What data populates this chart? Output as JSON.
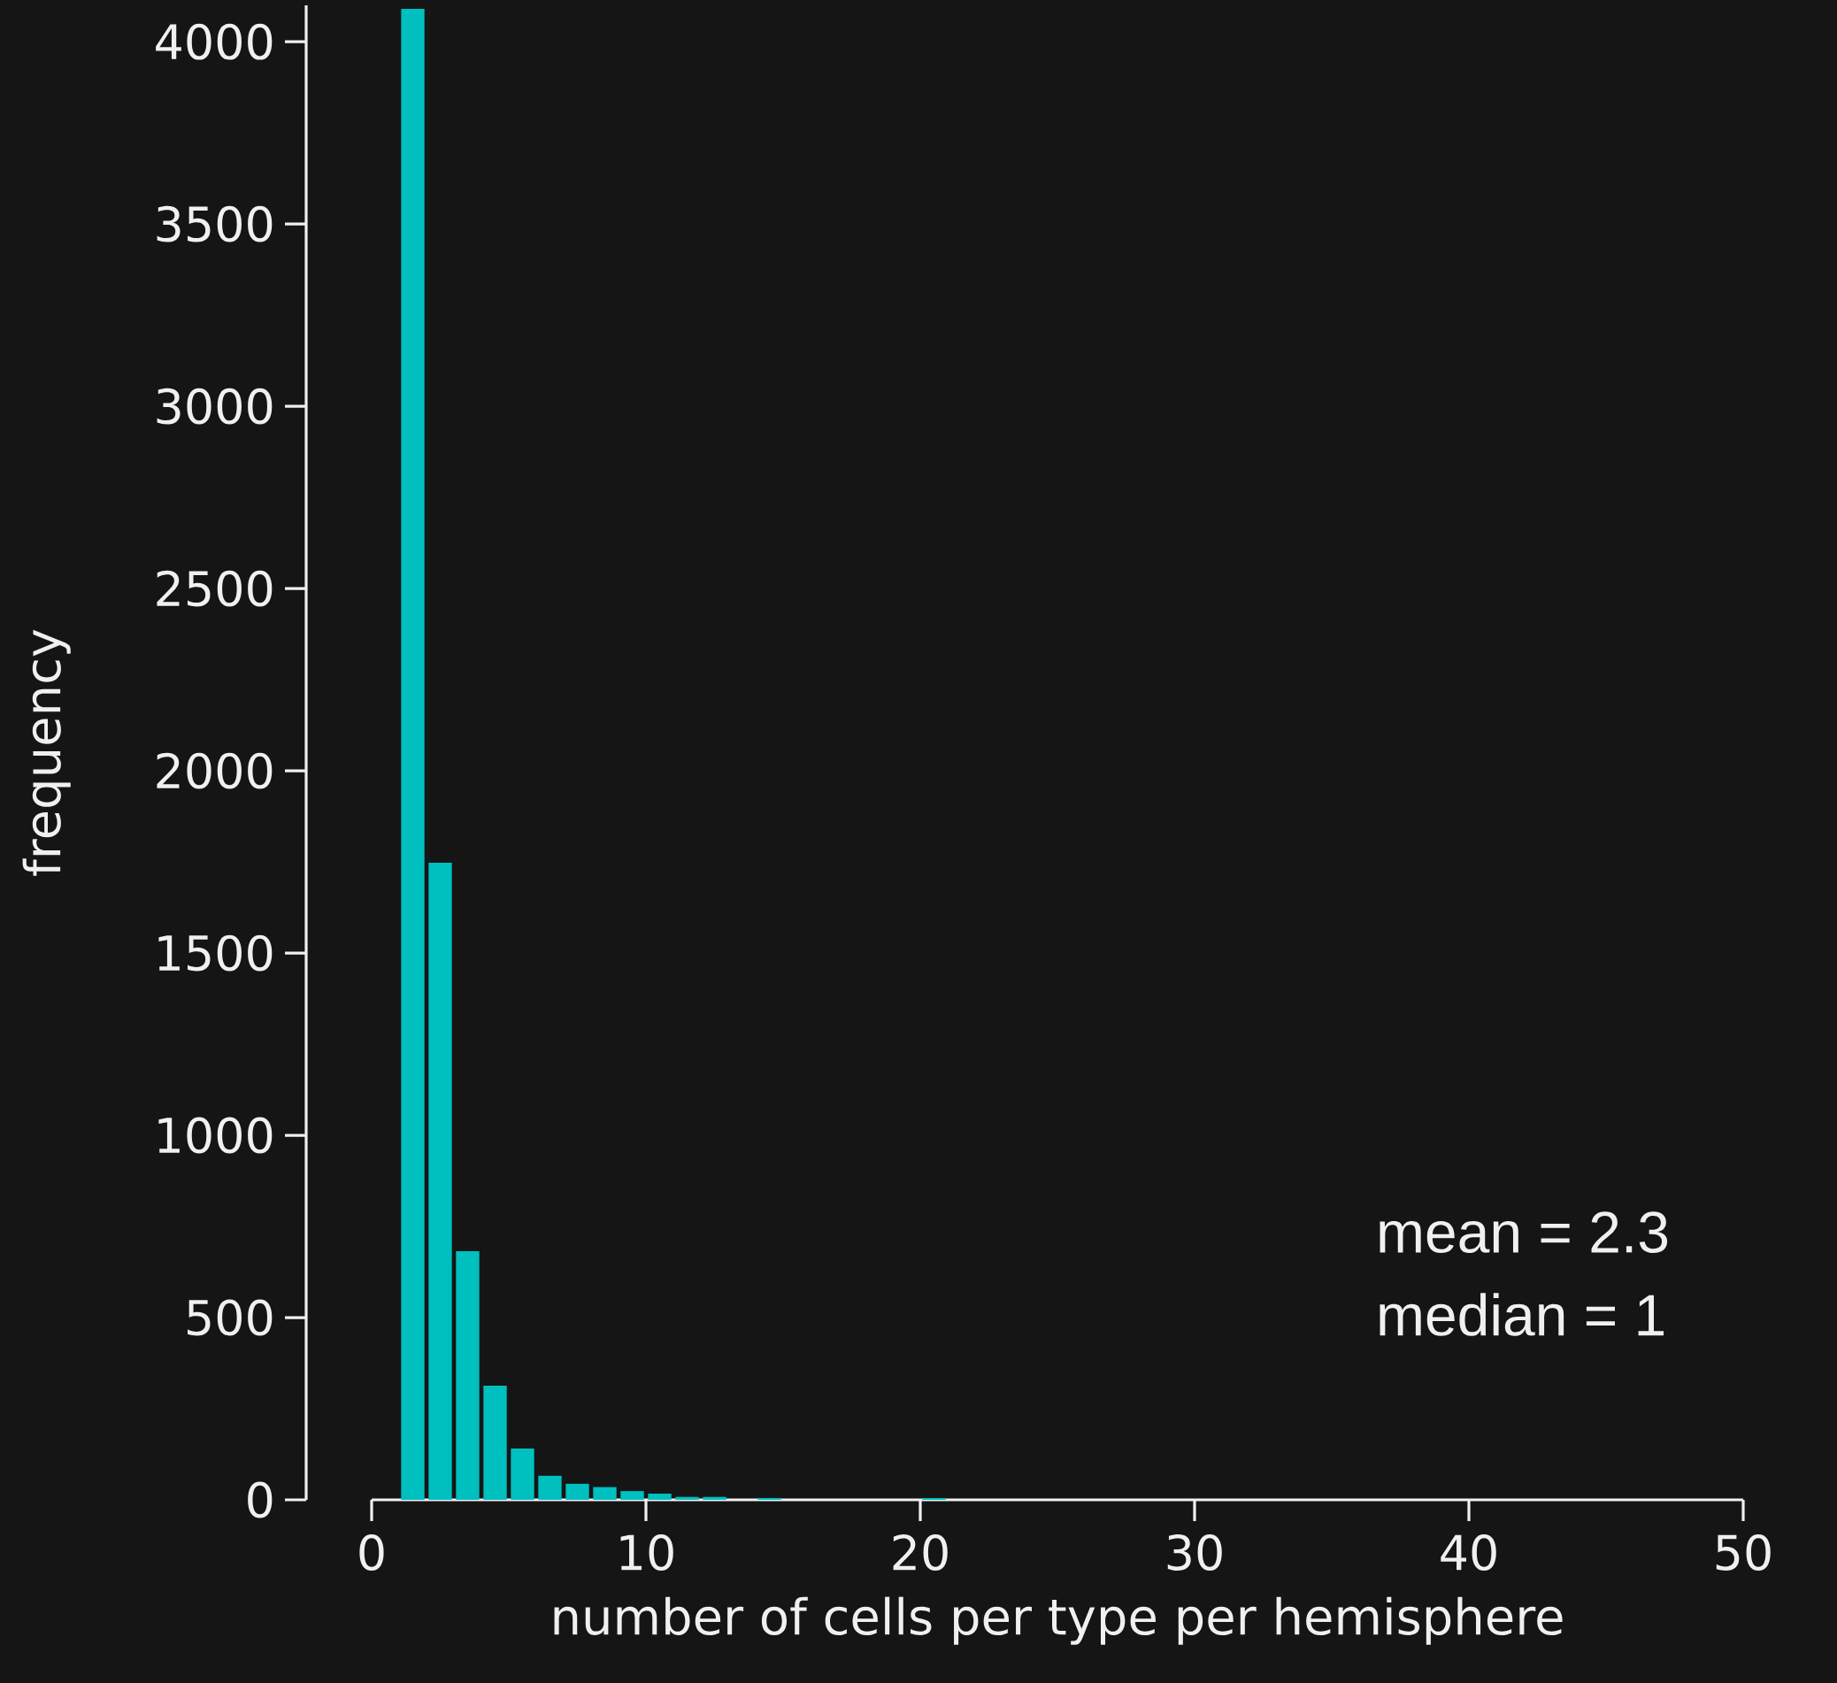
{
  "chart_data": {
    "type": "histogram",
    "xlabel": "number of cells per type per hemisphere",
    "ylabel": "frequency",
    "annotations": [
      "mean = 2.3",
      "median = 1"
    ],
    "bins": [
      1,
      2,
      3,
      4,
      5,
      6,
      7,
      8,
      9,
      10,
      11,
      12,
      13,
      14,
      15,
      16,
      17,
      18,
      19,
      20,
      21,
      22,
      23,
      24,
      25,
      26,
      27,
      28,
      29,
      30,
      31,
      32,
      33,
      34,
      35,
      36,
      37,
      38,
      39,
      40,
      41,
      42,
      43,
      44,
      45,
      46,
      47,
      48,
      49,
      50
    ],
    "values": [
      4090,
      1748,
      682,
      313,
      141,
      66,
      44,
      35,
      24,
      17,
      8,
      8,
      0,
      5,
      0,
      0,
      0,
      0,
      0,
      5,
      0,
      0,
      0,
      0,
      0,
      0,
      0,
      0,
      0,
      0,
      0,
      0,
      0,
      0,
      0,
      0,
      0,
      0,
      0,
      0,
      0,
      0,
      0,
      0,
      0,
      0,
      0,
      0,
      0
    ],
    "color": "#00bfbf",
    "xlim": [
      0,
      50
    ],
    "ylim": [
      0,
      4100
    ],
    "xticks": [
      0,
      10,
      20,
      30,
      40,
      50
    ],
    "yticks": [
      0,
      500,
      1000,
      1500,
      2000,
      2500,
      3000,
      3500,
      4000
    ]
  }
}
